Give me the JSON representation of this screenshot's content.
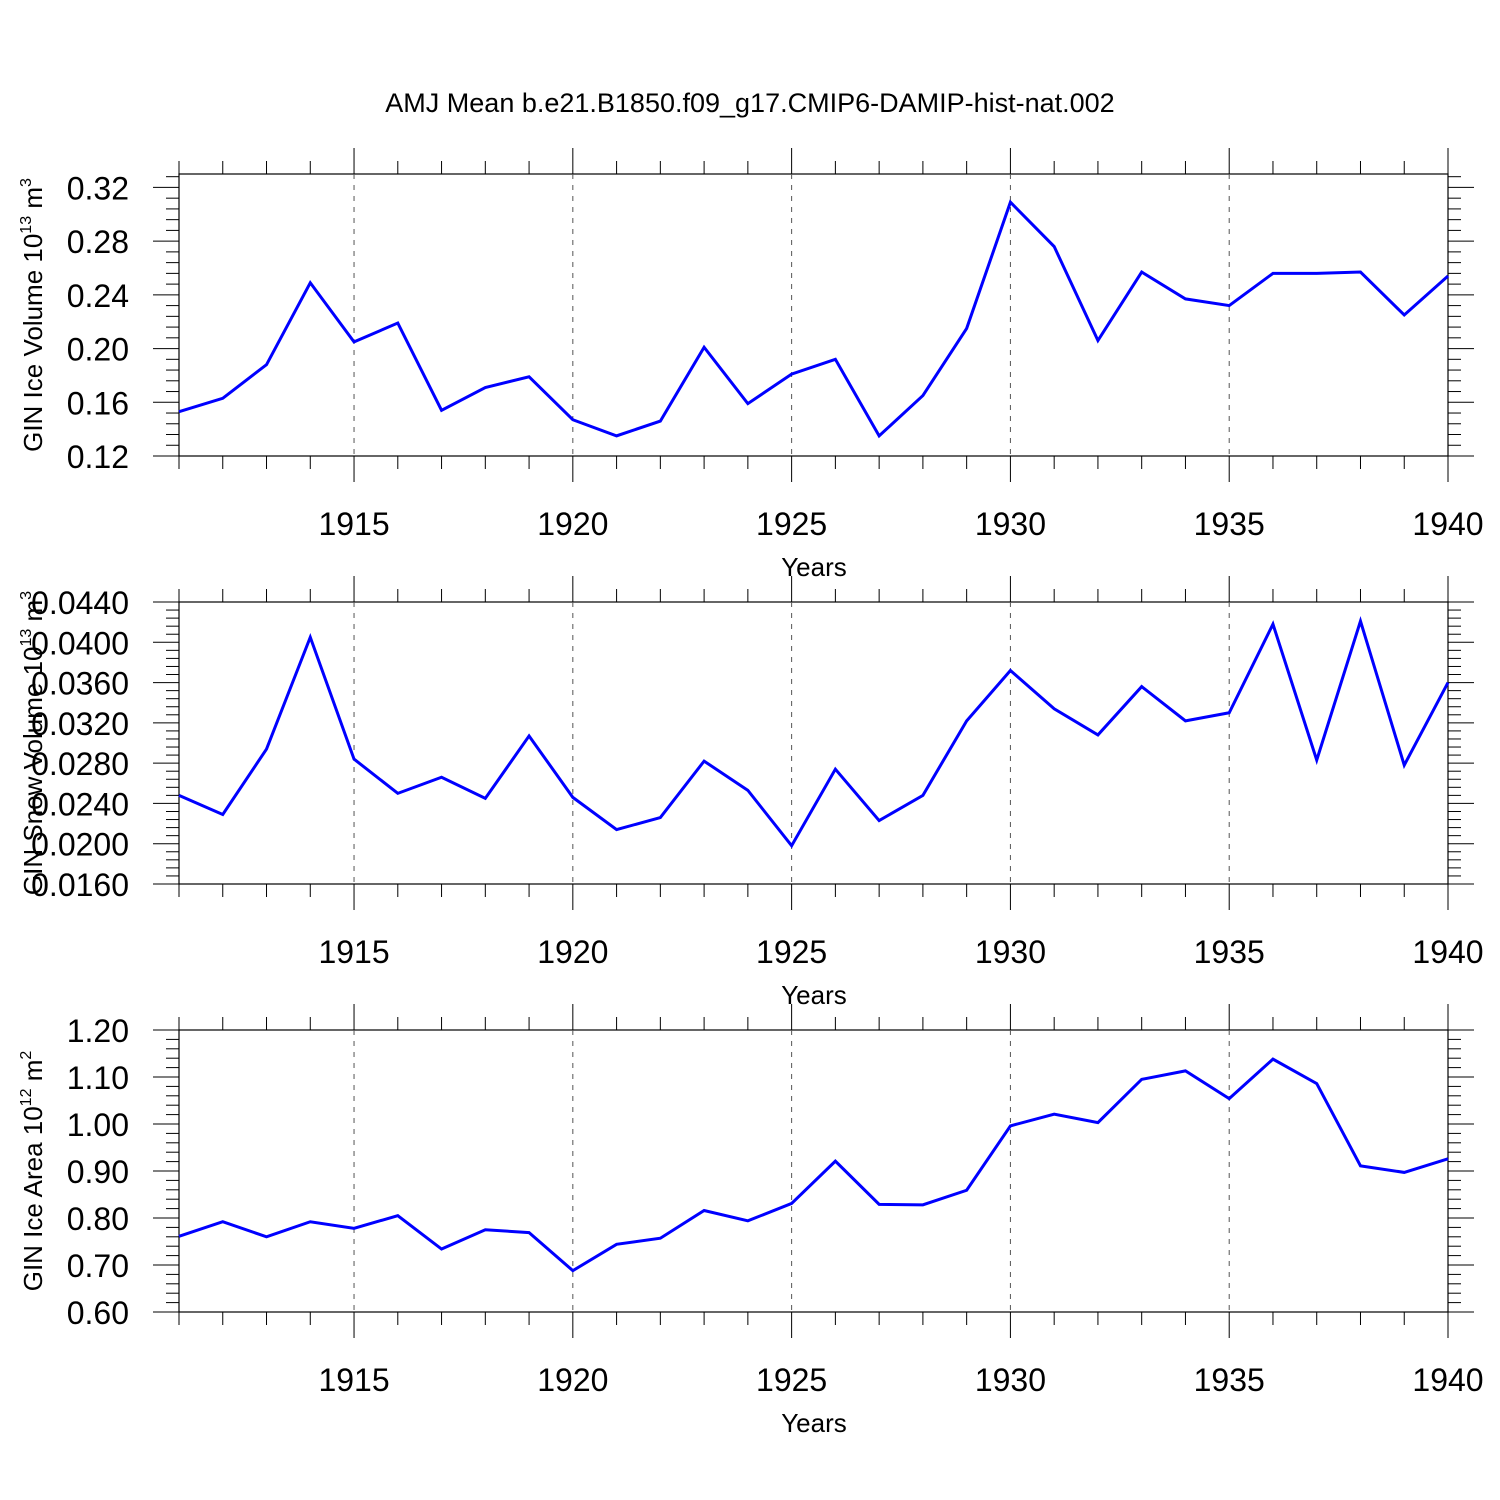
{
  "title": "AMJ Mean b.e21.B1850.f09_g17.CMIP6-DAMIP-hist-nat.002",
  "line_color": "#0000ff",
  "chart_data": [
    {
      "type": "line",
      "ylabel": "GIN Ice Volume 10",
      "ylabel_sup": "13",
      "ylabel_unit": "m",
      "ylabel_unit_sup": "3",
      "xlabel": "Years",
      "xlim": [
        1911,
        1940
      ],
      "ylim": [
        0.12,
        0.33
      ],
      "yticks": [
        "0.12",
        "0.16",
        "0.20",
        "0.24",
        "0.28",
        "0.32"
      ],
      "xticks": [
        "1915",
        "1920",
        "1925",
        "1930",
        "1935",
        "1940"
      ],
      "grid": "dashed vertical at major x ticks",
      "x": [
        1911,
        1912,
        1913,
        1914,
        1915,
        1916,
        1917,
        1918,
        1919,
        1920,
        1921,
        1922,
        1923,
        1924,
        1925,
        1926,
        1927,
        1928,
        1929,
        1930,
        1931,
        1932,
        1933,
        1934,
        1935,
        1936,
        1937,
        1938,
        1939,
        1940
      ],
      "values": [
        0.153,
        0.163,
        0.188,
        0.249,
        0.205,
        0.219,
        0.154,
        0.171,
        0.179,
        0.147,
        0.135,
        0.146,
        0.201,
        0.159,
        0.181,
        0.192,
        0.135,
        0.165,
        0.215,
        0.309,
        0.276,
        0.206,
        0.257,
        0.237,
        0.232,
        0.256,
        0.256,
        0.257,
        0.225,
        0.254
      ]
    },
    {
      "type": "line",
      "ylabel": "GIN Snow Volume 10",
      "ylabel_sup": "13",
      "ylabel_unit": "m",
      "ylabel_unit_sup": "3",
      "xlabel": "Years",
      "xlim": [
        1911,
        1940
      ],
      "ylim": [
        0.016,
        0.044
      ],
      "yticks": [
        "0.0160",
        "0.0200",
        "0.0240",
        "0.0280",
        "0.0320",
        "0.0360",
        "0.0400",
        "0.0440"
      ],
      "xticks": [
        "1915",
        "1920",
        "1925",
        "1930",
        "1935",
        "1940"
      ],
      "grid": "dashed vertical at major x ticks",
      "x": [
        1911,
        1912,
        1913,
        1914,
        1915,
        1916,
        1917,
        1918,
        1919,
        1920,
        1921,
        1922,
        1923,
        1924,
        1925,
        1926,
        1927,
        1928,
        1929,
        1930,
        1931,
        1932,
        1933,
        1934,
        1935,
        1936,
        1937,
        1938,
        1939,
        1940
      ],
      "values": [
        0.0248,
        0.0229,
        0.0294,
        0.0405,
        0.0284,
        0.025,
        0.0266,
        0.0245,
        0.0307,
        0.0246,
        0.0214,
        0.0226,
        0.0282,
        0.0253,
        0.0198,
        0.0274,
        0.0223,
        0.0248,
        0.0322,
        0.0372,
        0.0334,
        0.0308,
        0.0356,
        0.0322,
        0.033,
        0.0418,
        0.0283,
        0.0421,
        0.0278,
        0.036
      ]
    },
    {
      "type": "line",
      "ylabel": "GIN Ice Area 10",
      "ylabel_sup": "12",
      "ylabel_unit": "m",
      "ylabel_unit_sup": "2",
      "xlabel": "Years",
      "xlim": [
        1911,
        1940
      ],
      "ylim": [
        0.6,
        1.2
      ],
      "yticks": [
        "0.60",
        "0.70",
        "0.80",
        "0.90",
        "1.00",
        "1.10",
        "1.20"
      ],
      "xticks": [
        "1915",
        "1920",
        "1925",
        "1930",
        "1935",
        "1940"
      ],
      "grid": "dashed vertical at major x ticks",
      "x": [
        1911,
        1912,
        1913,
        1914,
        1915,
        1916,
        1917,
        1918,
        1919,
        1920,
        1921,
        1922,
        1923,
        1924,
        1925,
        1926,
        1927,
        1928,
        1929,
        1930,
        1931,
        1932,
        1933,
        1934,
        1935,
        1936,
        1937,
        1938,
        1939,
        1940
      ],
      "values": [
        0.761,
        0.792,
        0.76,
        0.792,
        0.778,
        0.805,
        0.734,
        0.775,
        0.769,
        0.688,
        0.744,
        0.757,
        0.816,
        0.794,
        0.831,
        0.921,
        0.829,
        0.828,
        0.859,
        0.996,
        1.021,
        1.003,
        1.095,
        1.113,
        1.054,
        1.138,
        1.086,
        0.911,
        0.897,
        0.926
      ]
    }
  ]
}
